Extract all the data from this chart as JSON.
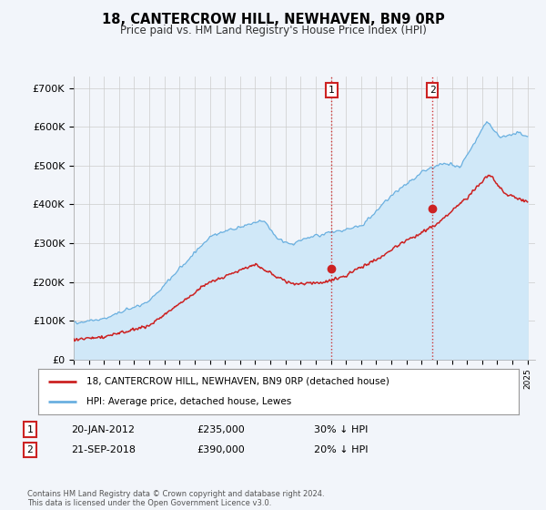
{
  "title": "18, CANTERCROW HILL, NEWHAVEN, BN9 0RP",
  "subtitle": "Price paid vs. HM Land Registry's House Price Index (HPI)",
  "ylabel_ticks": [
    "£0",
    "£100K",
    "£200K",
    "£300K",
    "£400K",
    "£500K",
    "£600K",
    "£700K"
  ],
  "ytick_values": [
    0,
    100000,
    200000,
    300000,
    400000,
    500000,
    600000,
    700000
  ],
  "ylim": [
    0,
    730000
  ],
  "xlim_start": 1995.0,
  "xlim_end": 2025.5,
  "sale1_x": 2012.054,
  "sale1_y": 235000,
  "sale1_label": "1",
  "sale2_x": 2018.72,
  "sale2_y": 390000,
  "sale2_label": "2",
  "hpi_color": "#6ab0e0",
  "hpi_fill_color": "#d0e8f8",
  "price_color": "#cc2222",
  "sale_marker_color": "#cc2222",
  "vline_color": "#cc2222",
  "legend_entries": [
    "18, CANTERCROW HILL, NEWHAVEN, BN9 0RP (detached house)",
    "HPI: Average price, detached house, Lewes"
  ],
  "annotation1_date": "20-JAN-2012",
  "annotation1_price": "£235,000",
  "annotation1_pct": "30% ↓ HPI",
  "annotation2_date": "21-SEP-2018",
  "annotation2_price": "£390,000",
  "annotation2_pct": "20% ↓ HPI",
  "footer": "Contains HM Land Registry data © Crown copyright and database right 2024.\nThis data is licensed under the Open Government Licence v3.0.",
  "background_color": "#f2f5fa",
  "plot_bg_color": "#f2f5fa"
}
